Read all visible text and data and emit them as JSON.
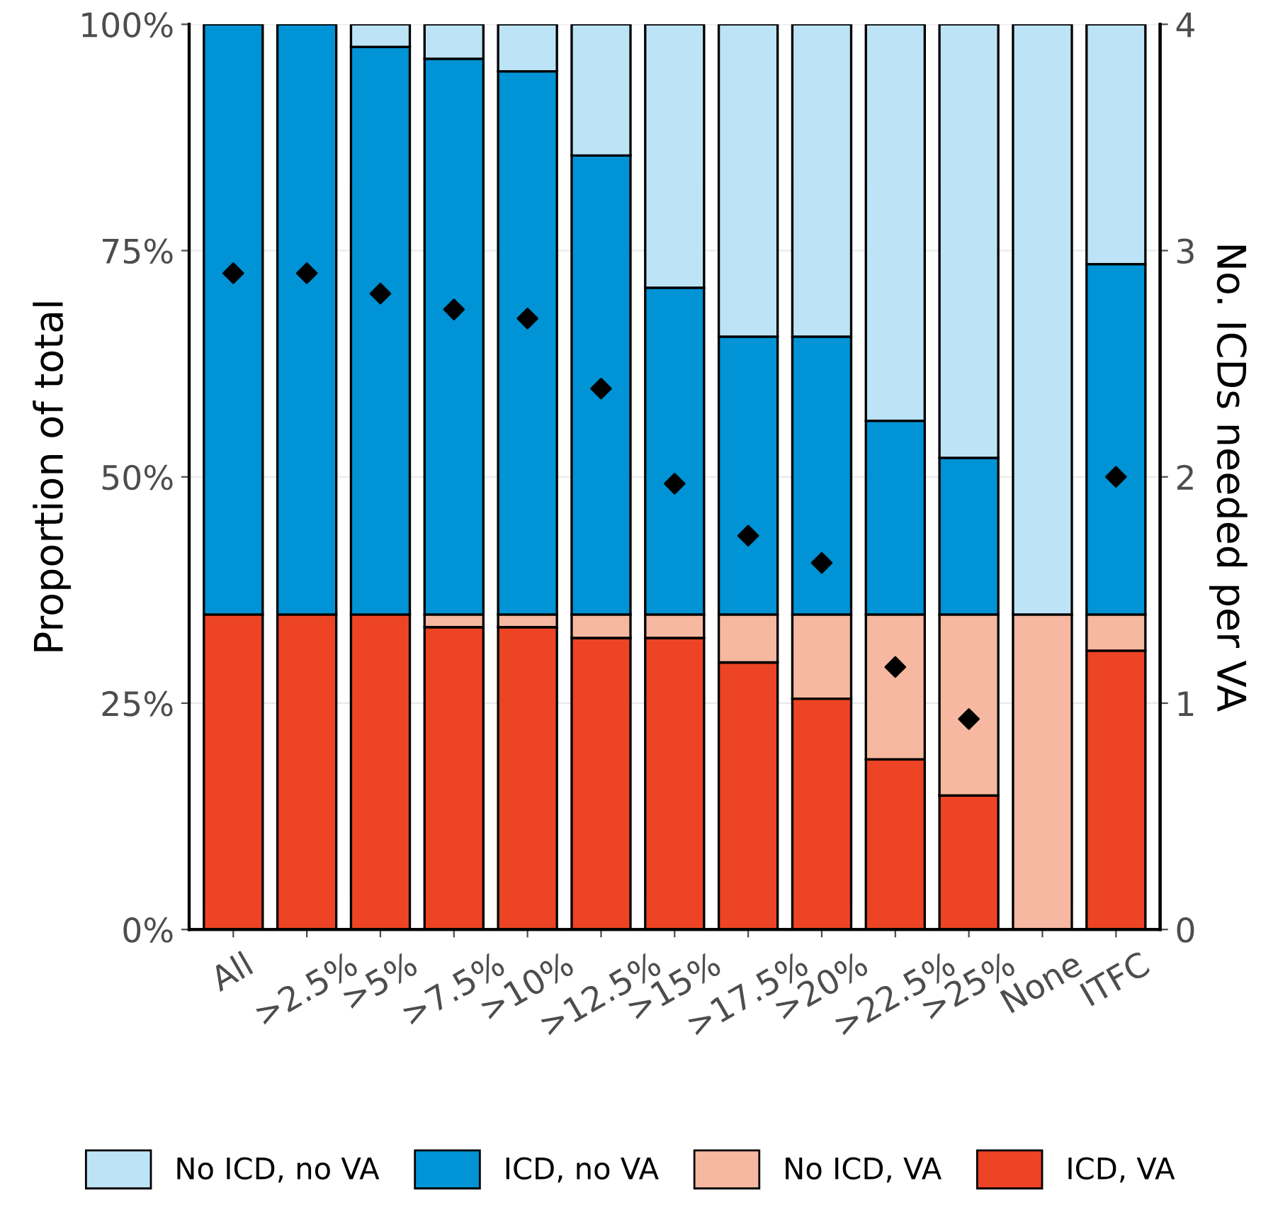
{
  "chart_data": {
    "type": "bar",
    "stacked": true,
    "xlabel": null,
    "ylabel": "Proportion of total",
    "y2label": "No. ICDs needed per VA",
    "categories": [
      "All",
      ">2.5%",
      ">5%",
      ">7.5%",
      ">10%",
      ">12.5%",
      ">15%",
      ">17.5%",
      ">20%",
      ">22.5%",
      ">25%",
      "None",
      "ITFC"
    ],
    "series": [
      {
        "name": "ICD, VA",
        "color": "#ec4424",
        "values": [
          34.8,
          34.8,
          34.8,
          33.4,
          33.4,
          32.2,
          32.2,
          29.5,
          25.5,
          18.8,
          14.8,
          0,
          30.8
        ]
      },
      {
        "name": "No ICD, VA",
        "color": "#f6b8a0",
        "values": [
          0,
          0,
          0,
          1.4,
          1.4,
          2.6,
          2.6,
          5.3,
          9.3,
          16.0,
          20.0,
          34.8,
          4.0
        ]
      },
      {
        "name": "ICD, no VA",
        "color": "#0093d5",
        "values": [
          65.2,
          65.2,
          62.7,
          61.4,
          60.0,
          50.7,
          36.1,
          30.7,
          30.7,
          21.4,
          17.3,
          0,
          38.7
        ]
      },
      {
        "name": "No ICD, no VA",
        "color": "#bde3f6",
        "values": [
          0,
          0,
          2.5,
          3.8,
          5.2,
          14.5,
          29.1,
          34.5,
          34.5,
          43.8,
          47.9,
          65.2,
          26.5
        ]
      },
      {
        "type": "scatter",
        "axis": "y2",
        "color": "#000000",
        "marker": "diamond",
        "x": [
          "All",
          ">2.5%",
          ">5%",
          ">7.5%",
          ">10%",
          ">12.5%",
          ">15%",
          ">17.5%",
          ">20%",
          ">22.5%",
          ">25%",
          "None",
          "ITFC"
        ],
        "values": [
          2.9,
          2.9,
          2.81,
          2.74,
          2.7,
          2.39,
          1.97,
          1.74,
          1.62,
          1.16,
          0.93,
          null,
          2.0
        ]
      }
    ],
    "ylim": [
      0,
      100
    ],
    "yticks": [
      {
        "value": 0,
        "label": "0%"
      },
      {
        "value": 25,
        "label": "25%"
      },
      {
        "value": 50,
        "label": "50%"
      },
      {
        "value": 75,
        "label": "75%"
      },
      {
        "value": 100,
        "label": "100%"
      }
    ],
    "y2lim": [
      0,
      4
    ],
    "y2ticks": [
      0,
      1,
      2,
      3,
      4
    ],
    "grid": "y",
    "legend": "bottom"
  }
}
